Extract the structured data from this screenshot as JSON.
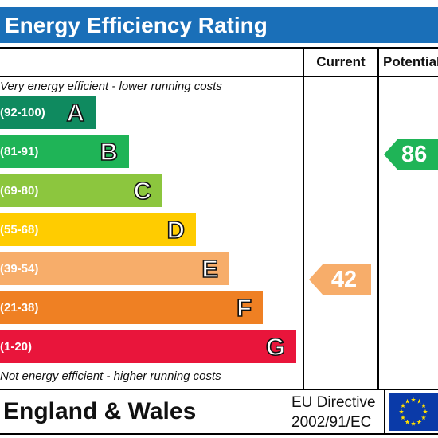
{
  "title": "Energy Efficiency Rating",
  "columns": {
    "current": "Current",
    "potential": "Potential"
  },
  "notes": {
    "top": "Very energy efficient - lower running costs",
    "bottom": "Not energy efficient - higher running costs"
  },
  "bands": [
    {
      "range": "(92-100)",
      "letter": "A",
      "color": "#0f8a5f"
    },
    {
      "range": "(81-91)",
      "letter": "B",
      "color": "#1fb457"
    },
    {
      "range": "(69-80)",
      "letter": "C",
      "color": "#8cc63e"
    },
    {
      "range": "(55-68)",
      "letter": "D",
      "color": "#ffcc00"
    },
    {
      "range": "(39-54)",
      "letter": "E",
      "color": "#f7ad6a"
    },
    {
      "range": "(21-38)",
      "letter": "F",
      "color": "#ef8023"
    },
    {
      "range": "(1-20)",
      "letter": "G",
      "color": "#e9153b"
    }
  ],
  "current": {
    "value": "42",
    "band": "E",
    "color": "#f7ad6a"
  },
  "potential": {
    "value": "86",
    "band": "B",
    "color": "#1fb457"
  },
  "footer": {
    "country": "England & Wales",
    "directive_line1": "EU Directive",
    "directive_line2": "2002/91/EC"
  },
  "colors": {
    "header": "#1a6fb8",
    "eu_flag": "#0a3aa8",
    "eu_stars": "#ffde00"
  },
  "icons": {
    "flag": "eu-flag-icon"
  }
}
